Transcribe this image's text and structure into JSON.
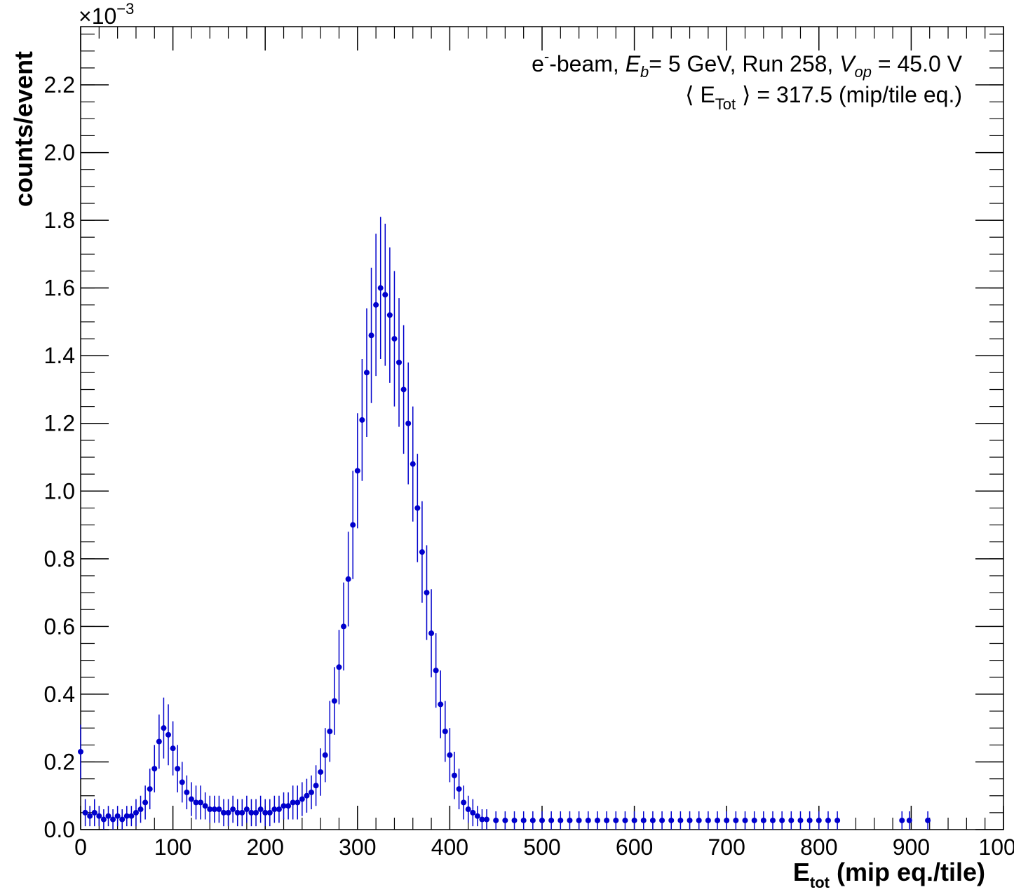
{
  "chart_data": {
    "type": "scatter",
    "annotations": [
      [
        "e",
        "-",
        "-beam, ",
        "E",
        "b",
        "= 5 GeV, Run 258, ",
        "V",
        "op",
        " = 45.0 V"
      ],
      [
        "⟨ E",
        "Tot",
        " ⟩ = 317.5 (mip/tile eq.)"
      ]
    ],
    "y_multiplier": [
      "×10",
      "−3"
    ],
    "xlabel": [
      "E",
      "tot",
      " (mip eq./tile)"
    ],
    "ylabel": "counts/event",
    "xlim": [
      0,
      1000
    ],
    "xticks": [
      0,
      100,
      200,
      300,
      400,
      500,
      600,
      700,
      800,
      900,
      1000
    ],
    "ylim": [
      0,
      2.372
    ],
    "yticks": [
      {
        "value": 0,
        "label": "0.0"
      },
      0.2,
      0.4,
      0.6,
      0.8,
      {
        "value": 1,
        "label": "1.0"
      },
      1.2,
      1.4,
      1.6,
      1.8,
      {
        "value": 2,
        "label": "2.0"
      },
      2.2
    ],
    "series": [
      {
        "color": "#0000cc",
        "x": [
          0,
          5,
          10,
          15,
          20,
          25,
          30,
          35,
          40,
          45,
          50,
          55,
          60,
          65,
          70,
          75,
          80,
          85,
          90,
          95,
          100,
          105,
          110,
          115,
          120,
          125,
          130,
          135,
          140,
          145,
          150,
          155,
          160,
          165,
          170,
          175,
          180,
          185,
          190,
          195,
          200,
          205,
          210,
          215,
          220,
          225,
          230,
          235,
          240,
          245,
          250,
          255,
          260,
          265,
          270,
          275,
          280,
          285,
          290,
          295,
          300,
          305,
          310,
          315,
          320,
          325,
          330,
          335,
          340,
          345,
          350,
          355,
          360,
          365,
          370,
          375,
          380,
          385,
          390,
          395,
          400,
          405,
          410,
          415,
          420,
          425,
          430,
          435,
          440,
          450,
          460,
          470,
          480,
          490,
          500,
          510,
          520,
          530,
          540,
          550,
          560,
          570,
          580,
          590,
          600,
          610,
          620,
          630,
          640,
          650,
          660,
          670,
          680,
          690,
          700,
          710,
          720,
          730,
          740,
          750,
          760,
          770,
          780,
          790,
          800,
          810,
          820,
          890,
          898,
          918
        ],
        "values": [
          0.23,
          0.05,
          0.04,
          0.05,
          0.04,
          0.03,
          0.04,
          0.03,
          0.04,
          0.03,
          0.04,
          0.04,
          0.05,
          0.06,
          0.08,
          0.12,
          0.18,
          0.26,
          0.3,
          0.28,
          0.24,
          0.18,
          0.14,
          0.11,
          0.09,
          0.08,
          0.08,
          0.07,
          0.06,
          0.06,
          0.06,
          0.05,
          0.05,
          0.06,
          0.05,
          0.05,
          0.06,
          0.05,
          0.05,
          0.06,
          0.05,
          0.05,
          0.06,
          0.06,
          0.07,
          0.07,
          0.08,
          0.08,
          0.09,
          0.1,
          0.11,
          0.13,
          0.17,
          0.22,
          0.29,
          0.38,
          0.48,
          0.6,
          0.74,
          0.9,
          1.06,
          1.21,
          1.35,
          1.46,
          1.55,
          1.6,
          1.58,
          1.52,
          1.45,
          1.38,
          1.3,
          1.2,
          1.08,
          0.95,
          0.82,
          0.7,
          0.58,
          0.47,
          0.37,
          0.29,
          0.22,
          0.16,
          0.12,
          0.08,
          0.06,
          0.05,
          0.04,
          0.03,
          0.03,
          0.027,
          0.027,
          0.027,
          0.027,
          0.027,
          0.027,
          0.027,
          0.027,
          0.027,
          0.027,
          0.027,
          0.027,
          0.027,
          0.027,
          0.027,
          0.027,
          0.027,
          0.027,
          0.027,
          0.027,
          0.027,
          0.027,
          0.027,
          0.027,
          0.027,
          0.027,
          0.027,
          0.027,
          0.027,
          0.027,
          0.027,
          0.027,
          0.027,
          0.027,
          0.027,
          0.027,
          0.027,
          0.027,
          0.027,
          0.027,
          0.027
        ],
        "errors": [
          0.08,
          0.04,
          0.03,
          0.04,
          0.03,
          0.03,
          0.03,
          0.03,
          0.03,
          0.03,
          0.03,
          0.03,
          0.04,
          0.04,
          0.05,
          0.06,
          0.07,
          0.08,
          0.09,
          0.09,
          0.08,
          0.07,
          0.06,
          0.05,
          0.05,
          0.05,
          0.05,
          0.04,
          0.04,
          0.04,
          0.04,
          0.04,
          0.04,
          0.04,
          0.04,
          0.04,
          0.04,
          0.04,
          0.04,
          0.04,
          0.04,
          0.04,
          0.04,
          0.04,
          0.04,
          0.04,
          0.05,
          0.05,
          0.05,
          0.05,
          0.05,
          0.06,
          0.07,
          0.08,
          0.09,
          0.1,
          0.11,
          0.13,
          0.14,
          0.16,
          0.17,
          0.18,
          0.19,
          0.2,
          0.21,
          0.21,
          0.21,
          0.2,
          0.2,
          0.19,
          0.19,
          0.18,
          0.17,
          0.16,
          0.15,
          0.14,
          0.13,
          0.11,
          0.1,
          0.09,
          0.08,
          0.07,
          0.06,
          0.05,
          0.04,
          0.04,
          0.03,
          0.03,
          0.03,
          0.027,
          0.027,
          0.027,
          0.027,
          0.027,
          0.027,
          0.027,
          0.027,
          0.027,
          0.027,
          0.027,
          0.027,
          0.027,
          0.027,
          0.027,
          0.027,
          0.027,
          0.027,
          0.027,
          0.027,
          0.027,
          0.027,
          0.027,
          0.027,
          0.027,
          0.027,
          0.027,
          0.027,
          0.027,
          0.027,
          0.027,
          0.027,
          0.027,
          0.027,
          0.027,
          0.027,
          0.027,
          0.027,
          0.027,
          0.027,
          0.027
        ]
      }
    ]
  }
}
